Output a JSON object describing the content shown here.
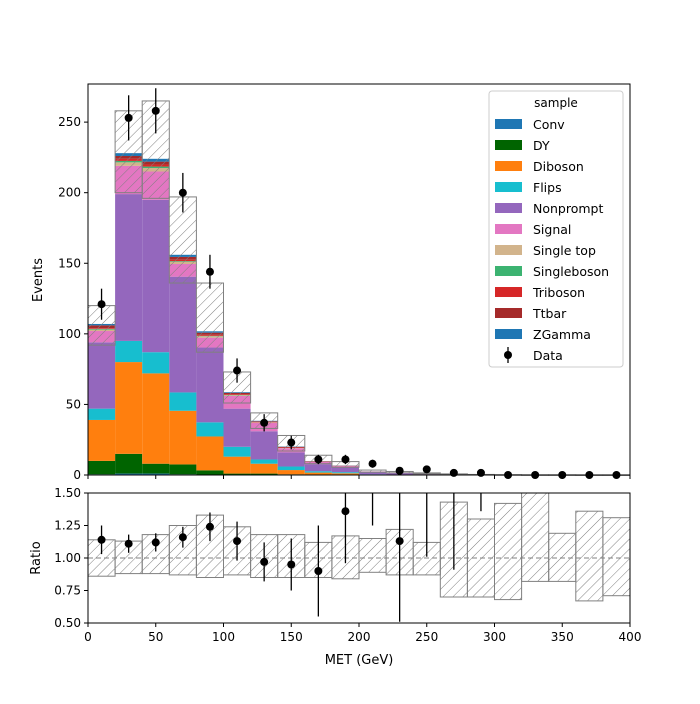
{
  "chart_data": {
    "type": "bar",
    "stacked": true,
    "x_edges": [
      0,
      20,
      40,
      60,
      80,
      100,
      120,
      140,
      160,
      180,
      200,
      220,
      240,
      260,
      280,
      300,
      320,
      340,
      360,
      380,
      400
    ],
    "xlabel": "MET (GeV)",
    "ylabel": "Events",
    "ratio_ylabel": "Ratio",
    "xlim": [
      0,
      400
    ],
    "ylim": [
      0,
      277
    ],
    "ratio_ylim": [
      0.5,
      1.5
    ],
    "x_ticks": [
      "0",
      "50",
      "100",
      "150",
      "200",
      "250",
      "300",
      "350",
      "400"
    ],
    "y_ticks": [
      "0",
      "50",
      "100",
      "150",
      "200",
      "250"
    ],
    "ratio_ticks": [
      "0.50",
      "0.75",
      "1.00",
      "1.25",
      "1.50"
    ],
    "legend_title": "sample",
    "legend_position": "top-right",
    "series": [
      {
        "name": "Conv",
        "color": "#1f77b4",
        "values": [
          0.5,
          1,
          1,
          0.5,
          0.3,
          0.2,
          0.1,
          0,
          0,
          0,
          0,
          0,
          0,
          0,
          0,
          0,
          0,
          0,
          0,
          0
        ]
      },
      {
        "name": "DY",
        "color": "#006400",
        "values": [
          9.5,
          14,
          7,
          7,
          3,
          0.8,
          0.9,
          0.5,
          0.3,
          0.2,
          0,
          0,
          0,
          0,
          0,
          0,
          0,
          0,
          0,
          0
        ]
      },
      {
        "name": "Diboson",
        "color": "#ff7f0e",
        "values": [
          29,
          65,
          64,
          38,
          24,
          12,
          7,
          3,
          1.4,
          1,
          0.3,
          0.2,
          0.1,
          0,
          0,
          0,
          0,
          0,
          0,
          0
        ]
      },
      {
        "name": "Flips",
        "color": "#17becf",
        "values": [
          8,
          15,
          15,
          13,
          10,
          7,
          3,
          2.5,
          1,
          0.8,
          0.2,
          0.1,
          0.1,
          0,
          0,
          0,
          0,
          0,
          0,
          0
        ]
      },
      {
        "name": "Nonprompt",
        "color": "#9467bd",
        "values": [
          47,
          104,
          108,
          82,
          53,
          27,
          20,
          10,
          5,
          3.3,
          1.4,
          1,
          0.4,
          0.2,
          0.1,
          0,
          0,
          0,
          0,
          0
        ]
      },
      {
        "name": "Signal",
        "color": "#e377c2",
        "values": [
          8,
          20,
          20,
          9,
          7,
          9,
          6,
          3,
          1.5,
          1,
          0.5,
          0.4,
          0.3,
          0.2,
          0.1,
          0.1,
          0,
          0,
          0,
          0
        ]
      },
      {
        "name": "Single top",
        "color": "#d2b48c",
        "values": [
          1,
          2.5,
          2.5,
          1.5,
          1,
          0.5,
          0.3,
          0.2,
          0,
          0,
          0,
          0,
          0,
          0,
          0,
          0,
          0,
          0,
          0,
          0
        ]
      },
      {
        "name": "Singleboson",
        "color": "#3cb371",
        "values": [
          0.5,
          1,
          1,
          0.5,
          0.3,
          0.2,
          0,
          0,
          0,
          0,
          0,
          0,
          0,
          0,
          0,
          0,
          0,
          0,
          0,
          0
        ]
      },
      {
        "name": "Triboson",
        "color": "#d62728",
        "values": [
          0.5,
          1.5,
          1.5,
          1,
          0.7,
          0.5,
          0.3,
          0.3,
          0.2,
          0.1,
          0,
          0,
          0,
          0,
          0,
          0,
          0,
          0,
          0,
          0
        ]
      },
      {
        "name": "Ttbar",
        "color": "#a52a2a",
        "values": [
          2,
          2,
          2,
          2,
          1.5,
          1,
          0.5,
          0.5,
          0.3,
          0.2,
          0.1,
          0.1,
          0,
          0,
          0,
          0,
          0,
          0,
          0,
          0
        ]
      },
      {
        "name": "ZGamma",
        "color": "#1f77b4",
        "values": [
          1,
          2,
          2,
          1.5,
          1,
          0.5,
          0.3,
          0.2,
          0.1,
          0.1,
          0,
          0,
          0,
          0,
          0,
          0,
          0,
          0,
          0,
          0
        ]
      }
    ],
    "mc_total": [
      107,
      228,
      224,
      156,
      102,
      59,
      39,
      20,
      10,
      6.7,
      2.5,
      1.8,
      0.9,
      0.4,
      0.2,
      0.1,
      0,
      0,
      0,
      0
    ],
    "uncertainty_band": {
      "up": [
        120,
        258,
        265,
        197,
        136,
        73,
        44,
        28,
        14,
        9.5,
        3.5,
        2.5,
        1.5,
        0.8,
        0.4,
        0.2,
        0.1,
        0.1,
        0.05,
        0.05
      ],
      "down": [
        92,
        200,
        196,
        136,
        87,
        51,
        33,
        17,
        8,
        5.5,
        2,
        1.5,
        0.8,
        0.3,
        0.1,
        0.05,
        0,
        0,
        0,
        0
      ]
    },
    "data": {
      "name": "Data",
      "x": [
        10,
        30,
        50,
        70,
        90,
        110,
        130,
        150,
        170,
        190,
        210,
        230,
        250,
        270,
        290,
        310,
        330,
        350,
        370,
        390
      ],
      "y": [
        121,
        253,
        258,
        200,
        144,
        74,
        37,
        23,
        11,
        11,
        8,
        3,
        4,
        1.5,
        1.5,
        0,
        0,
        0,
        0,
        0
      ],
      "yerr": [
        11,
        16,
        16,
        14,
        12,
        8.6,
        6.1,
        4.8,
        3.3,
        3.3,
        2.8,
        1.7,
        2,
        1.2,
        1.2,
        0,
        0,
        0,
        0,
        0
      ]
    },
    "ratio": {
      "x": [
        10,
        30,
        50,
        70,
        90,
        110,
        130,
        150,
        170,
        190,
        230
      ],
      "y": [
        1.14,
        1.11,
        1.12,
        1.16,
        1.24,
        1.13,
        0.97,
        0.95,
        0.9,
        1.36,
        1.13
      ],
      "yerr": [
        0.11,
        0.07,
        0.07,
        0.08,
        0.11,
        0.15,
        0.15,
        0.2,
        0.35,
        0.4,
        0.62
      ],
      "partial_bars": [
        {
          "x": 210,
          "lo": 1.25,
          "hi": 1.5
        },
        {
          "x": 250,
          "lo": 1.01,
          "hi": 1.5
        },
        {
          "x": 270,
          "lo": 0.91,
          "hi": 1.5
        },
        {
          "x": 290,
          "lo": 1.36,
          "hi": 1.5
        }
      ],
      "band_up": [
        1.14,
        1.13,
        1.18,
        1.25,
        1.33,
        1.24,
        1.18,
        1.18,
        1.12,
        1.17,
        1.15,
        1.22,
        1.12,
        1.43,
        1.3,
        1.42,
        1.5,
        1.19,
        1.36,
        1.31
      ],
      "band_down": [
        0.86,
        0.88,
        0.88,
        0.87,
        0.85,
        0.87,
        0.85,
        0.85,
        0.85,
        0.84,
        0.89,
        0.87,
        0.87,
        0.7,
        0.7,
        0.68,
        0.82,
        0.82,
        0.67,
        0.71
      ]
    }
  }
}
